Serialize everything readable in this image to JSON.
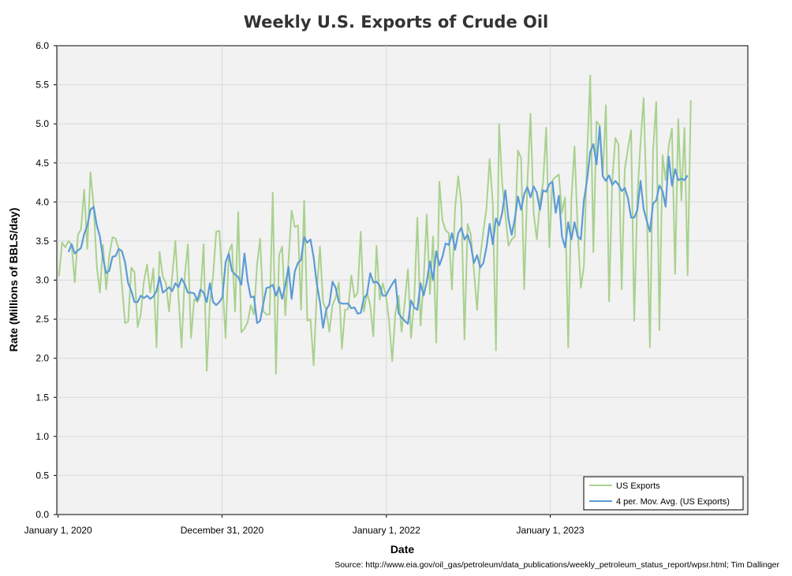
{
  "chart_data": {
    "type": "line",
    "title": "Weekly U.S. Exports of Crude Oil",
    "xlabel": "Date",
    "ylabel": "Rate (Millions of BBLS/day)",
    "source": "Source: http://www.eia.gov/oil_gas/petroleum/data_publications/weekly_petroleum_status_report/wpsr.html; Tim Dallinger",
    "x_start": "2020-01-03",
    "x_interval_days": 7,
    "x_axis": {
      "min": "2019-12-29",
      "max": "2024-03-16"
    },
    "x_ticks": [
      {
        "date": "2020-01-01",
        "label": "January 1, 2020"
      },
      {
        "date": "2020-12-31",
        "label": "December 31, 2020"
      },
      {
        "date": "2022-01-01",
        "label": "January 1, 2022"
      },
      {
        "date": "2023-01-01",
        "label": "January 1, 2023"
      }
    ],
    "ylim": [
      0,
      6
    ],
    "y_ticks": [
      "0.0",
      "0.5",
      "1.0",
      "1.5",
      "2.0",
      "2.5",
      "3.0",
      "3.5",
      "4.0",
      "4.5",
      "5.0",
      "5.5",
      "6.0"
    ],
    "grid": true,
    "legend_position": "bottom-right",
    "series": [
      {
        "name": "US Exports",
        "color": "#a9d18e",
        "values": [
          3.05,
          3.48,
          3.42,
          3.5,
          3.45,
          2.97,
          3.58,
          3.65,
          4.16,
          3.4,
          4.38,
          3.95,
          3.18,
          2.84,
          3.45,
          2.88,
          3.32,
          3.55,
          3.53,
          3.4,
          2.95,
          2.45,
          2.47,
          3.16,
          3.1,
          2.4,
          2.56,
          2.98,
          3.2,
          2.84,
          3.15,
          2.14,
          3.36,
          3.05,
          2.96,
          2.6,
          3.05,
          3.5,
          2.78,
          2.14,
          3.05,
          3.46,
          2.26,
          2.76,
          2.72,
          2.8,
          3.46,
          1.84,
          2.72,
          3.05,
          3.62,
          3.63,
          2.95,
          2.26,
          3.36,
          3.46,
          2.6,
          3.87,
          2.33,
          2.38,
          2.46,
          2.68,
          2.56,
          3.2,
          3.53,
          2.6,
          2.56,
          2.56,
          4.12,
          1.8,
          3.32,
          3.43,
          2.55,
          3.24,
          3.89,
          3.68,
          3.7,
          2.62,
          4.02,
          2.48,
          2.5,
          1.91,
          2.84,
          3.43,
          2.72,
          2.62,
          2.34,
          2.68,
          2.78,
          2.97,
          2.12,
          2.62,
          2.63,
          3.06,
          2.78,
          2.84,
          3.62,
          2.6,
          2.84,
          2.68,
          2.28,
          3.44,
          2.75,
          2.96,
          2.8,
          2.48,
          1.96,
          2.58,
          2.8,
          2.34,
          2.72,
          3.14,
          2.26,
          2.74,
          3.8,
          2.42,
          2.98,
          3.84,
          2.82,
          3.56,
          2.2,
          4.26,
          3.76,
          3.64,
          3.6,
          2.88,
          3.92,
          4.33,
          3.98,
          2.24,
          3.72,
          3.58,
          3.12,
          2.62,
          3.3,
          3.62,
          3.92,
          4.55,
          3.98,
          2.1,
          5.0,
          4.24,
          3.84,
          3.44,
          3.52,
          3.56,
          4.66,
          4.56,
          2.88,
          4.22,
          5.13,
          3.86,
          3.52,
          4.0,
          4.24,
          4.95,
          3.42,
          4.28,
          4.32,
          4.35,
          3.86,
          4.06,
          2.14,
          4.02,
          4.71,
          3.64,
          2.9,
          3.18,
          4.58,
          5.62,
          3.36,
          5.03,
          4.98,
          4.35,
          5.24,
          2.73,
          4.26,
          4.82,
          4.73,
          2.88,
          4.42,
          4.68,
          4.92,
          2.48,
          4.08,
          4.76,
          5.33,
          3.92,
          2.14,
          4.66,
          5.28,
          2.36,
          4.6,
          4.28,
          4.72,
          4.94,
          3.08,
          5.06,
          4.02,
          4.95,
          3.06,
          5.3
        ]
      },
      {
        "name": "4 per. Mov. Avg. (US Exports)",
        "color": "#5b9bd5",
        "start_index": 3,
        "values": [
          3.36,
          3.46,
          3.34,
          3.38,
          3.41,
          3.59,
          3.7,
          3.9,
          3.94,
          3.7,
          3.56,
          3.28,
          3.09,
          3.12,
          3.3,
          3.31,
          3.4,
          3.37,
          3.23,
          2.96,
          2.86,
          2.72,
          2.72,
          2.8,
          2.77,
          2.8,
          2.76,
          2.79,
          2.86,
          3.04,
          2.84,
          2.87,
          2.91,
          2.86,
          2.96,
          2.91,
          3.02,
          2.95,
          2.84,
          2.84,
          2.83,
          2.74,
          2.88,
          2.84,
          2.72,
          2.96,
          2.72,
          2.68,
          2.72,
          2.78,
          3.23,
          3.34,
          3.12,
          3.07,
          3.04,
          2.94,
          3.34,
          2.99,
          2.78,
          2.79,
          2.45,
          2.48,
          2.7,
          2.9,
          2.91,
          2.94,
          2.8,
          2.91,
          2.76,
          2.93,
          3.17,
          2.76,
          3.11,
          3.22,
          3.26,
          3.55,
          3.48,
          3.52,
          3.29,
          2.95,
          2.72,
          2.39,
          2.62,
          2.69,
          2.98,
          2.9,
          2.72,
          2.7,
          2.7,
          2.7,
          2.64,
          2.65,
          2.57,
          2.58,
          2.77,
          2.82,
          3.09,
          2.97,
          2.98,
          2.93,
          2.8,
          2.8,
          2.88,
          2.95,
          3.01,
          2.58,
          2.52,
          2.48,
          2.44,
          2.74,
          2.65,
          2.62,
          2.96,
          2.8,
          2.98,
          3.24,
          3.0,
          3.37,
          3.19,
          3.3,
          3.47,
          3.45,
          3.6,
          3.39,
          3.6,
          3.67,
          3.52,
          3.58,
          3.45,
          3.22,
          3.32,
          3.16,
          3.22,
          3.42,
          3.72,
          3.46,
          3.79,
          3.7,
          3.86,
          4.15,
          3.78,
          3.58,
          3.78,
          4.07,
          3.9,
          4.1,
          4.19,
          4.06,
          4.2,
          4.12,
          3.9,
          4.15,
          4.13,
          4.23,
          4.26,
          3.86,
          4.08,
          3.56,
          3.42,
          3.74,
          3.52,
          3.74,
          3.56,
          3.52,
          4.02,
          4.28,
          4.64,
          4.74,
          4.48,
          4.96,
          4.33,
          4.27,
          4.34,
          4.22,
          4.27,
          4.22,
          4.14,
          4.18,
          4.05,
          3.8,
          3.8,
          3.9,
          4.27,
          3.91,
          3.76,
          3.62,
          3.98,
          4.02,
          4.21,
          4.14,
          3.94,
          4.58,
          4.21,
          4.42,
          4.28,
          4.3,
          4.28,
          4.34
        ]
      }
    ]
  }
}
